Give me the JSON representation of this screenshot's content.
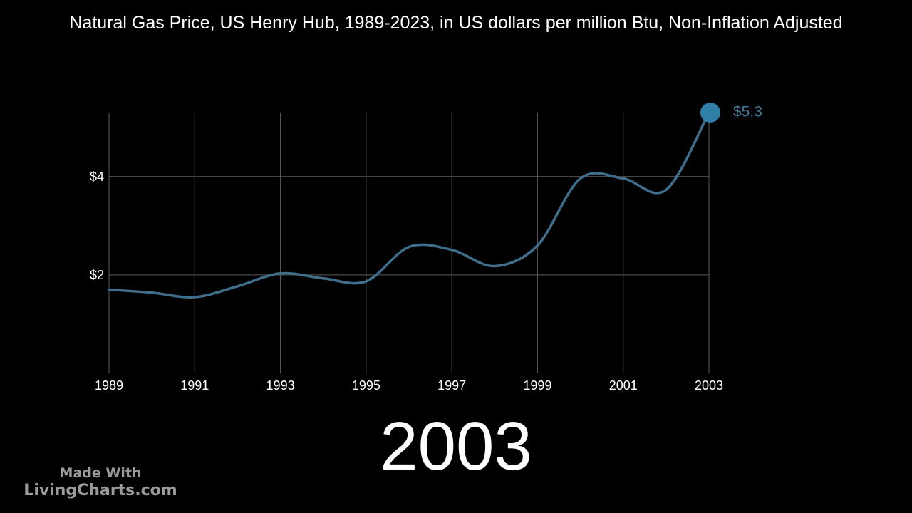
{
  "title": "Natural Gas Price, US Henry Hub, 1989-2023, in US dollars per million Btu, Non-Inflation Adjusted",
  "current_year": "2003",
  "watermark": {
    "line1": "Made With",
    "line2": "LivingCharts.com"
  },
  "colors": {
    "background": "#000000",
    "line": "#3f6f8c",
    "marker": "#2f7fa8",
    "value_label": "#3f7596",
    "grid": "#5a5a5a",
    "text": "#ffffff"
  },
  "chart_data": {
    "type": "line",
    "x": [
      1989,
      1990,
      1991,
      1992,
      1993,
      1994,
      1995,
      1996,
      1997,
      1998,
      1999,
      2000,
      2001,
      2002,
      2003
    ],
    "values": [
      1.7,
      1.64,
      1.55,
      1.77,
      2.03,
      1.93,
      1.87,
      2.57,
      2.51,
      2.18,
      2.6,
      3.96,
      3.96,
      3.73,
      5.3
    ],
    "x_ticks": [
      "1989",
      "1991",
      "1993",
      "1995",
      "1997",
      "1999",
      "2001",
      "2003"
    ],
    "y_ticks": [
      "$2",
      "$4"
    ],
    "y_tick_values": [
      2,
      4
    ],
    "xlim": [
      1989,
      2003
    ],
    "ylim": [
      0,
      5.3
    ],
    "grid": true,
    "end_label": "$5.3"
  }
}
